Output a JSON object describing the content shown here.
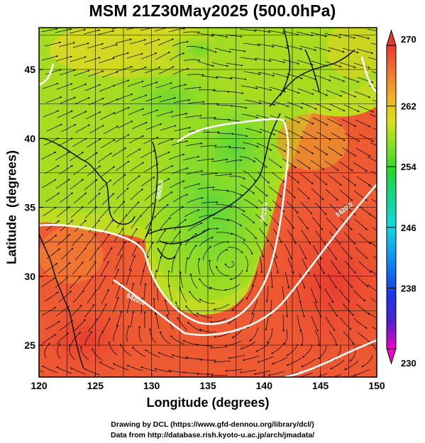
{
  "title": "MSM 21Z30May2025 (500.0hPa)",
  "x_axis_title": "Longitude (degrees)",
  "y_axis_title": "Latitude  (degrees)",
  "x_ticks": [
    "120",
    "125",
    "130",
    "135",
    "140",
    "145",
    "150"
  ],
  "y_ticks": [
    "25",
    "30",
    "35",
    "40",
    "45"
  ],
  "colorbar": {
    "labels": [
      "270",
      "262",
      "254",
      "246",
      "238",
      "230"
    ],
    "min": 230,
    "max": 270,
    "colors": [
      "#f000c8",
      "#5020d0",
      "#1838e8",
      "#1090f0",
      "#10d8e0",
      "#10d890",
      "#20d830",
      "#90e020",
      "#d8e018",
      "#f0b028",
      "#f07030",
      "#e83830"
    ]
  },
  "contour_labels": [
    "5820.0",
    "5820.0",
    "5820.0",
    "5820.0"
  ],
  "credits": {
    "line1": "Drawing by DCL (https://www.gfd-dennou.org/library/dcl/)",
    "line2": "Data from http://database.rish.kyoto-u.ac.jp/arch/jmadata/"
  }
}
